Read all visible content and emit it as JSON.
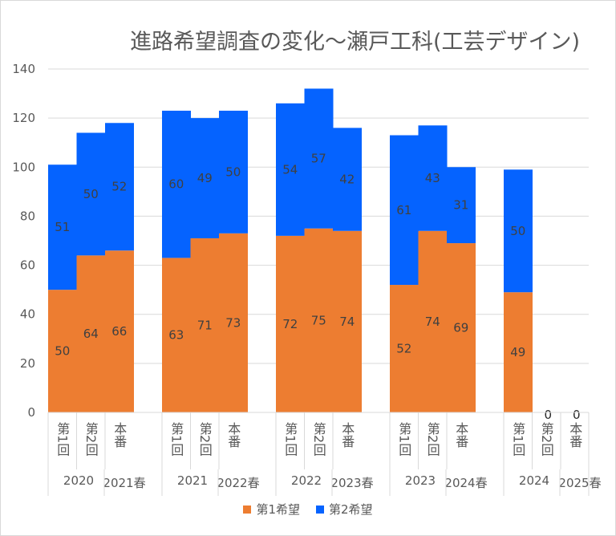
{
  "chart_data": {
    "type": "bar",
    "stacked": true,
    "title": "進路希望調査の変化～瀬戸工科(工芸デザイン)",
    "ylim": [
      0,
      140
    ],
    "yticks": [
      0,
      20,
      40,
      60,
      80,
      100,
      120,
      140
    ],
    "grid": true,
    "legend_position": "bottom",
    "groups": [
      {
        "label": "2020",
        "label2": "2021春",
        "categories": [
          "第1回",
          "第2回",
          "本番"
        ]
      },
      {
        "label": "2021",
        "label2": "2022春",
        "categories": [
          "第1回",
          "第2回",
          "本番"
        ]
      },
      {
        "label": "2022",
        "label2": "2023春",
        "categories": [
          "第1回",
          "第2回",
          "本番"
        ]
      },
      {
        "label": "2023",
        "label2": "2024春",
        "categories": [
          "第1回",
          "第2回",
          "本番"
        ]
      },
      {
        "label": "2024",
        "label2": "2025春",
        "categories": [
          "第1回",
          "第2回",
          "本番"
        ]
      }
    ],
    "series": [
      {
        "name": "第1希望",
        "color": "#ED7D31",
        "values": [
          50,
          64,
          66,
          63,
          71,
          73,
          72,
          75,
          74,
          52,
          74,
          69,
          49,
          0,
          0
        ]
      },
      {
        "name": "第2希望",
        "color": "#0563FF",
        "values": [
          51,
          50,
          52,
          60,
          49,
          50,
          54,
          57,
          42,
          61,
          43,
          31,
          50,
          0,
          0
        ]
      }
    ]
  }
}
